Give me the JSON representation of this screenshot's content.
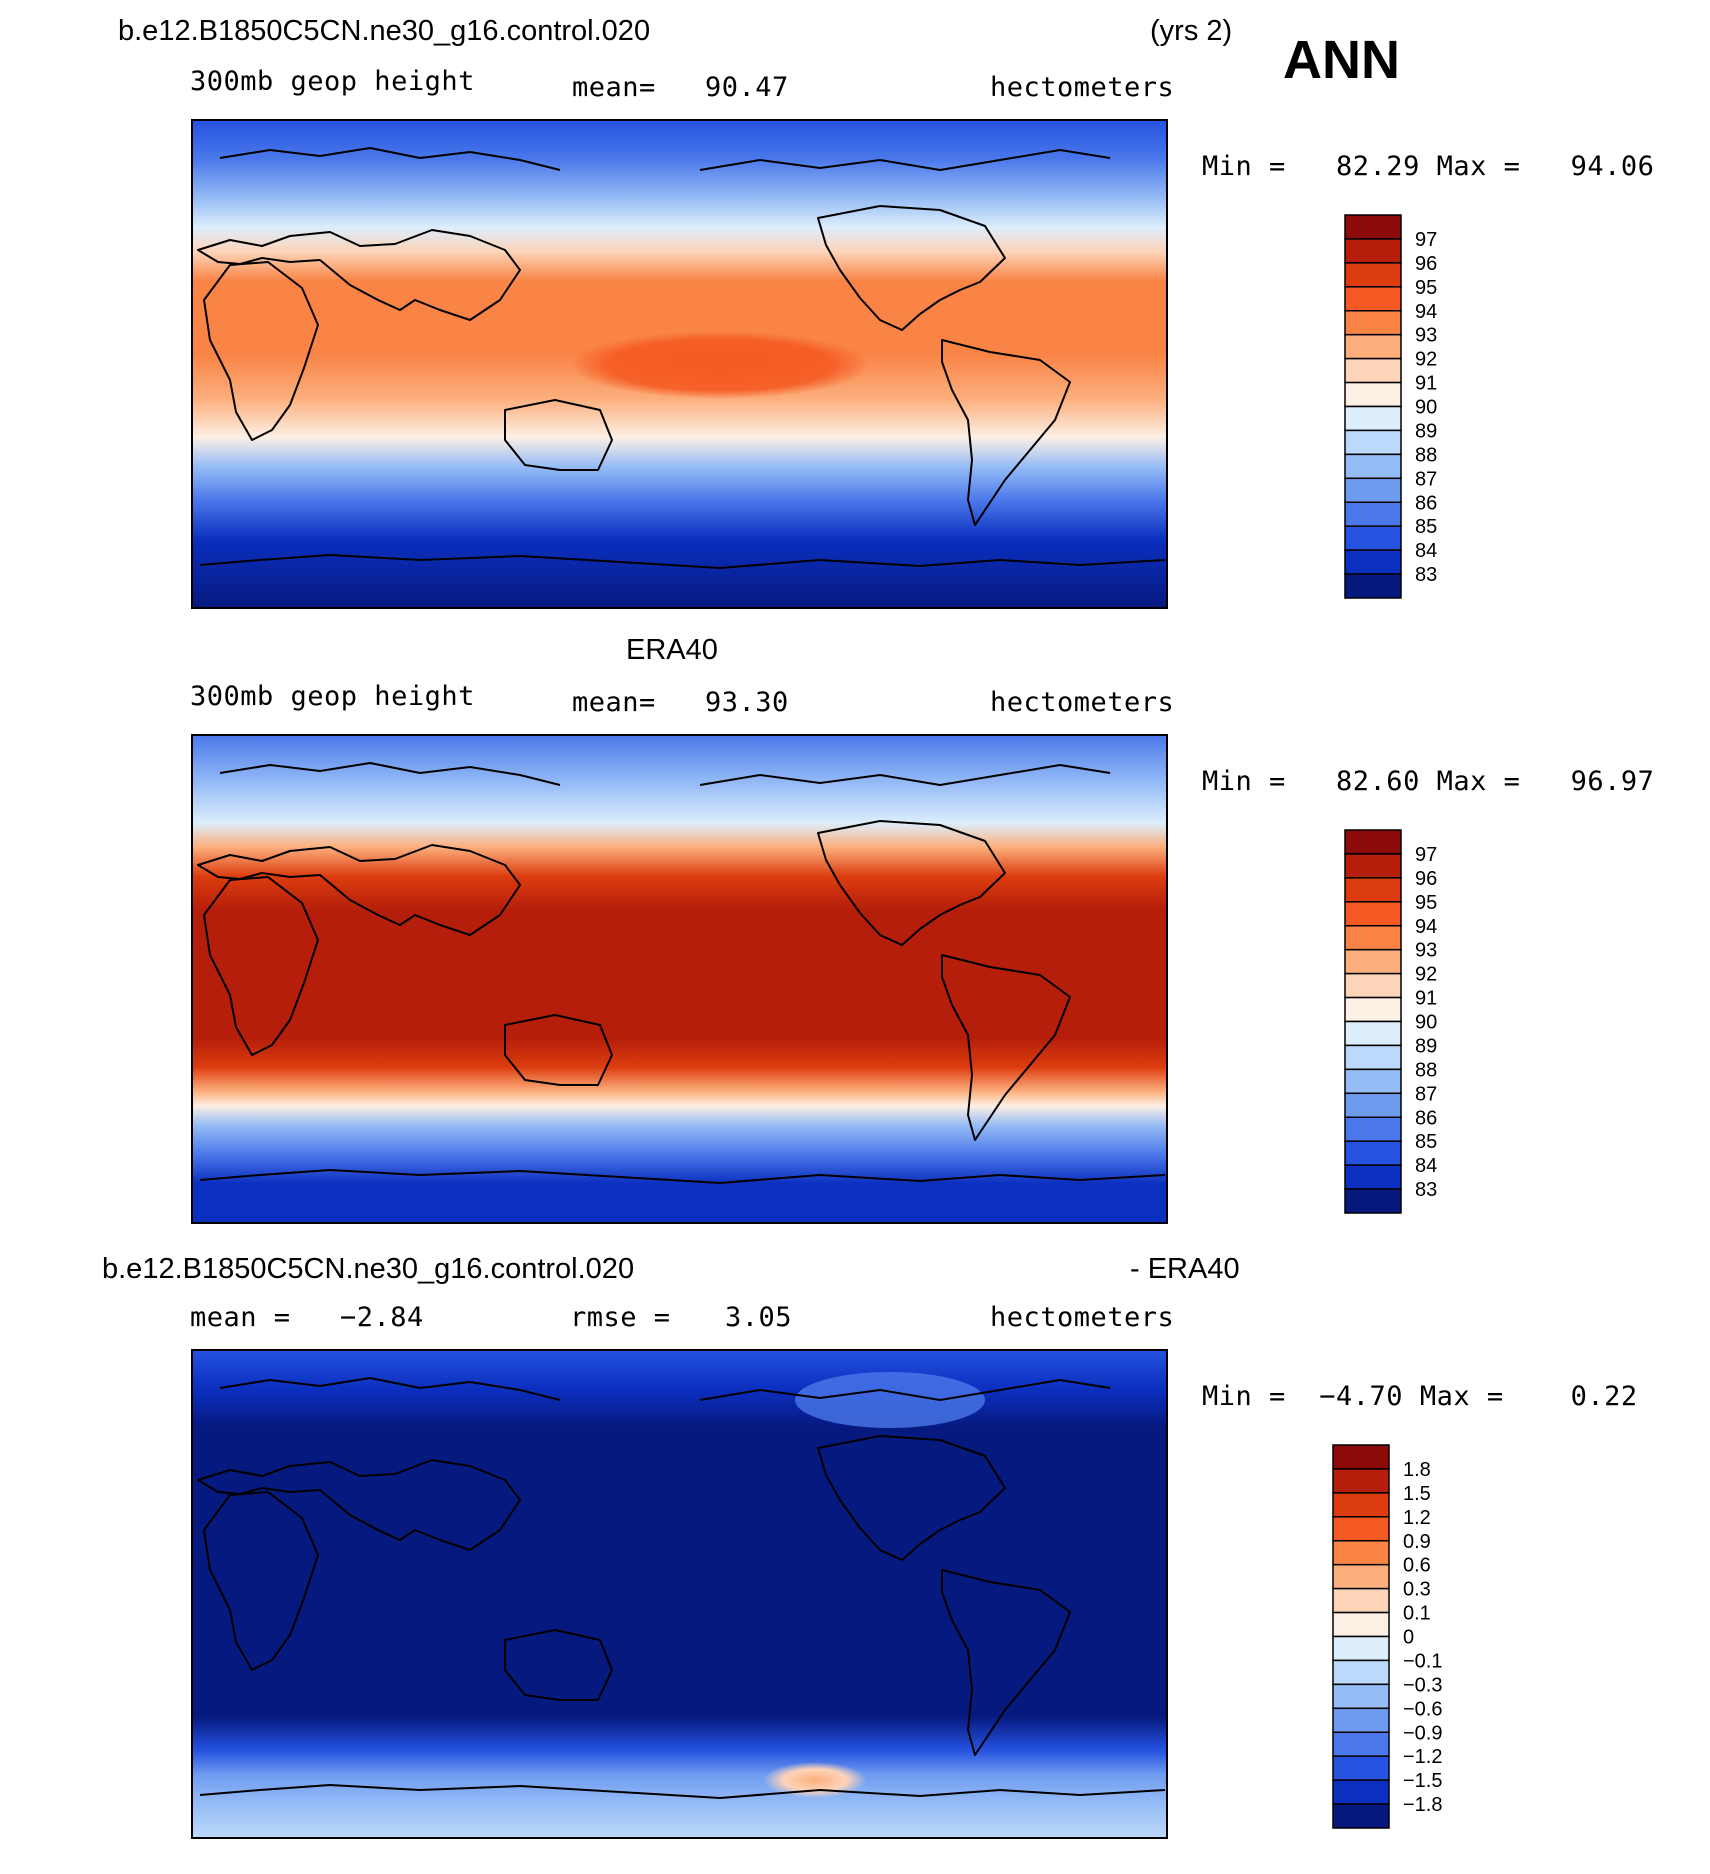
{
  "page": {
    "season_label": "ANN"
  },
  "chart_data": [
    {
      "type": "heatmap",
      "title": "b.e12.B1850C5CN.ne30_g16.control.020",
      "title_right": "(yrs 2)",
      "variable": "300mb geop height",
      "mean_label": "mean=",
      "mean_value": "90.47",
      "units": "hectometers",
      "min_max_text": "Min =   82.29 Max =   94.06",
      "min": 82.29,
      "max": 94.06,
      "colorbar_labels": [
        "97",
        "96",
        "95",
        "94",
        "93",
        "92",
        "91",
        "90",
        "89",
        "88",
        "87",
        "86",
        "85",
        "84",
        "83"
      ],
      "colorbar_colors": [
        "#8c0a0a",
        "#b41e0a",
        "#dc3c0e",
        "#f55a23",
        "#f98446",
        "#fcae7c",
        "#fdd4b8",
        "#fdf0e4",
        "#dceefc",
        "#bbd9fa",
        "#96bcf6",
        "#6e9bf0",
        "#4a78ea",
        "#2552df",
        "#0b2fbf",
        "#06197f"
      ]
    },
    {
      "type": "heatmap",
      "title": "ERA40",
      "variable": "300mb geop height",
      "mean_label": "mean=",
      "mean_value": "93.30",
      "units": "hectometers",
      "min_max_text": "Min =   82.60 Max =   96.97",
      "min": 82.6,
      "max": 96.97,
      "colorbar_labels": [
        "97",
        "96",
        "95",
        "94",
        "93",
        "92",
        "91",
        "90",
        "89",
        "88",
        "87",
        "86",
        "85",
        "84",
        "83"
      ],
      "colorbar_colors": [
        "#8c0a0a",
        "#b41e0a",
        "#dc3c0e",
        "#f55a23",
        "#f98446",
        "#fcae7c",
        "#fdd4b8",
        "#fdf0e4",
        "#dceefc",
        "#bbd9fa",
        "#96bcf6",
        "#6e9bf0",
        "#4a78ea",
        "#2552df",
        "#0b2fbf",
        "#06197f"
      ]
    },
    {
      "type": "heatmap",
      "title": "b.e12.B1850C5CN.ne30_g16.control.020",
      "title_right": "- ERA40",
      "mean_label": "mean =",
      "mean_value": "−2.84",
      "rmse_label": "rmse =",
      "rmse_value": "3.05",
      "units": "hectometers",
      "min_max_text": "Min =  −4.70 Max =    0.22",
      "min": -4.7,
      "max": 0.22,
      "colorbar_labels": [
        "1.8",
        "1.5",
        "1.2",
        "0.9",
        "0.6",
        "0.3",
        "0.1",
        "0",
        "−0.1",
        "−0.3",
        "−0.6",
        "−0.9",
        "−1.2",
        "−1.5",
        "−1.8"
      ],
      "colorbar_colors": [
        "#8c0a0a",
        "#b41e0a",
        "#dc3c0e",
        "#f55a23",
        "#f98446",
        "#fcae7c",
        "#fdd4b8",
        "#fdf0e4",
        "#dceefc",
        "#bbd9fa",
        "#96bcf6",
        "#6e9bf0",
        "#4a78ea",
        "#2552df",
        "#0b2fbf",
        "#06197f"
      ]
    }
  ]
}
